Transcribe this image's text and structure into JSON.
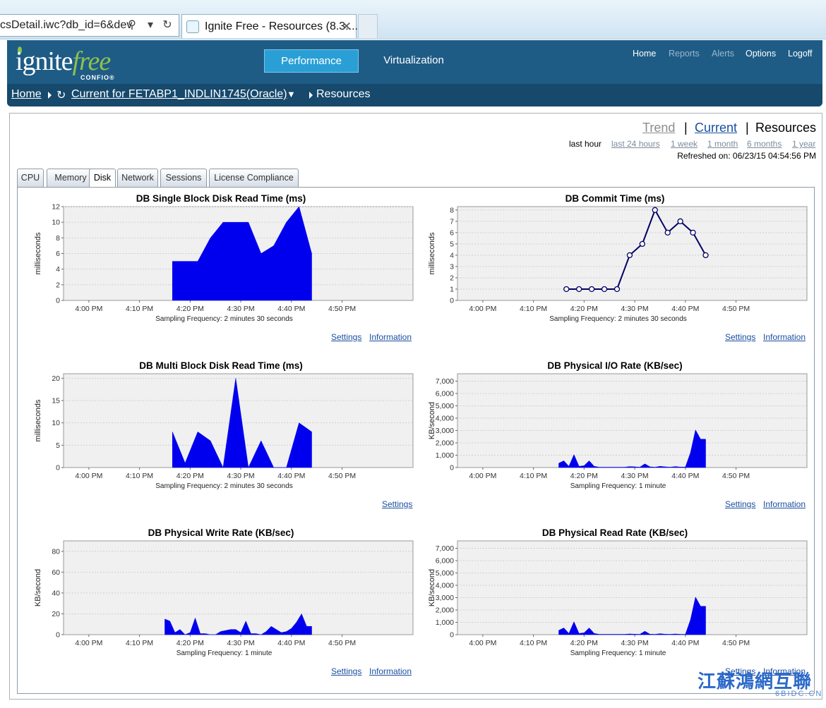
{
  "browser": {
    "address": "csDetail.iwc?db_id=6&dev",
    "tab_title": "Ignite Free - Resources (8.3....",
    "tab_close": "✕"
  },
  "header": {
    "logo_main": "ignite",
    "logo_accent": "free",
    "logo_sub": "CONFIO®",
    "nav_performance": "Performance",
    "nav_virtualization": "Virtualization",
    "links": [
      {
        "label": "Home",
        "enabled": true
      },
      {
        "label": "Reports",
        "enabled": false
      },
      {
        "label": "Alerts",
        "enabled": false
      },
      {
        "label": "Options",
        "enabled": true
      },
      {
        "label": "Logoff",
        "enabled": true
      }
    ]
  },
  "breadcrumb": {
    "home": "Home",
    "current": "Current for FETABP1_INDLIN1745(Oracle)",
    "dropdown_glyph": "▼",
    "refresh_glyph": "↻",
    "page": "Resources"
  },
  "view": {
    "trend": "Trend",
    "current": "Current",
    "resources": "Resources",
    "sep": "|",
    "ranges": [
      "last hour",
      "last 24 hours",
      "1 week",
      "1 month",
      "6 months",
      "1 year"
    ],
    "selected_range": "last hour",
    "refreshed": "Refreshed on: 06/23/15 04:54:56 PM"
  },
  "tabs": [
    "CPU",
    "Memory",
    "Disk",
    "Network",
    "Sessions",
    "License Compliance"
  ],
  "active_tab": "Disk",
  "links": {
    "settings": "Settings",
    "information": "Information"
  },
  "watermark": {
    "text": "江蘇鴻網互聯",
    "sub": "6BIDC.CN"
  },
  "colors": {
    "series_fill": "#0000ee",
    "line_series": "#000066",
    "plot_bg": "#f0f0f0",
    "header": "#1e5c86",
    "accent": "#2a9fd6"
  },
  "chart_data": [
    {
      "type": "area",
      "title": "DB Single Block Disk Read Time (ms)",
      "ylabel": "milliseconds",
      "xlabel": "Sampling Frequency: 2 minutes 30 seconds",
      "x_ticks": [
        "4:00 PM",
        "4:10 PM",
        "4:20 PM",
        "4:30 PM",
        "4:40 PM",
        "4:50 PM"
      ],
      "x_range_minutes": [
        -5,
        64
      ],
      "ylim": [
        0,
        12
      ],
      "y_ticks": [
        0,
        2,
        4,
        6,
        8,
        10,
        12
      ],
      "x_minutes": [
        16.5,
        19,
        21.5,
        24,
        26.5,
        29,
        31.5,
        34,
        36.5,
        39,
        41.5,
        44
      ],
      "values": [
        5,
        5,
        5,
        8,
        10,
        10,
        10,
        6,
        7,
        10,
        12,
        6
      ],
      "links": [
        "settings",
        "information"
      ]
    },
    {
      "type": "line",
      "title": "DB Commit Time (ms)",
      "ylabel": "milliseconds",
      "xlabel": "Sampling Frequency: 2 minutes 30 seconds",
      "x_ticks": [
        "4:00 PM",
        "4:10 PM",
        "4:20 PM",
        "4:30 PM",
        "4:40 PM",
        "4:50 PM"
      ],
      "x_range_minutes": [
        -5,
        64
      ],
      "ylim": [
        0,
        8.3
      ],
      "y_ticks": [
        0,
        1,
        2,
        3,
        4,
        5,
        6,
        7,
        8
      ],
      "x_minutes": [
        16.5,
        19,
        21.5,
        24,
        26.5,
        29,
        31.5,
        34,
        36.5,
        39,
        41.5,
        44
      ],
      "values": [
        1,
        1,
        1,
        1,
        1,
        4,
        5,
        8,
        6,
        7,
        6,
        4
      ],
      "links": [
        "settings",
        "information"
      ]
    },
    {
      "type": "area",
      "title": "DB Multi Block Disk Read Time (ms)",
      "ylabel": "milliseconds",
      "xlabel": "Sampling Frequency: 2 minutes 30 seconds",
      "x_ticks": [
        "4:00 PM",
        "4:10 PM",
        "4:20 PM",
        "4:30 PM",
        "4:40 PM",
        "4:50 PM"
      ],
      "x_range_minutes": [
        -5,
        64
      ],
      "ylim": [
        0,
        21
      ],
      "y_ticks": [
        0,
        5,
        10,
        15,
        20
      ],
      "x_minutes": [
        16.5,
        19,
        21.5,
        24,
        26.5,
        29,
        31.5,
        34,
        36.5,
        39,
        41.5,
        44
      ],
      "values": [
        8,
        1,
        8,
        6,
        0,
        20,
        0,
        6,
        0,
        0,
        10,
        8
      ],
      "links": [
        "settings"
      ]
    },
    {
      "type": "area",
      "title": "DB Physical I/O Rate (KB/sec)",
      "ylabel": "KB/second",
      "xlabel": "Sampling Frequency: 1 minute",
      "x_ticks": [
        "4:00 PM",
        "4:10 PM",
        "4:20 PM",
        "4:30 PM",
        "4:40 PM",
        "4:50 PM"
      ],
      "x_range_minutes": [
        -5,
        64
      ],
      "ylim": [
        0,
        7600
      ],
      "y_ticks": [
        0,
        1000,
        2000,
        3000,
        4000,
        5000,
        6000,
        7000
      ],
      "y_tick_labels": [
        "0",
        "1,000",
        "2,000",
        "3,000",
        "4,000",
        "5,000",
        "6,000",
        "7,000"
      ],
      "x_minutes": [
        15,
        16,
        17,
        18,
        19,
        20,
        21,
        22,
        23,
        24,
        25,
        26,
        27,
        28,
        29,
        30,
        31,
        32,
        33,
        34,
        35,
        36,
        37,
        38,
        39,
        40,
        41,
        42,
        43,
        44
      ],
      "values": [
        350,
        550,
        100,
        1050,
        100,
        150,
        550,
        100,
        30,
        30,
        30,
        30,
        30,
        30,
        80,
        60,
        30,
        300,
        60,
        30,
        100,
        60,
        30,
        80,
        40,
        40,
        1200,
        3050,
        2300,
        2300
      ],
      "links": [
        "settings",
        "information"
      ]
    },
    {
      "type": "area",
      "title": "DB Physical Write Rate (KB/sec)",
      "ylabel": "KB/second",
      "xlabel": "Sampling Frequency: 1 minute",
      "x_ticks": [
        "4:00 PM",
        "4:10 PM",
        "4:20 PM",
        "4:30 PM",
        "4:40 PM",
        "4:50 PM"
      ],
      "x_range_minutes": [
        -5,
        64
      ],
      "ylim": [
        0,
        90
      ],
      "y_ticks": [
        0,
        20,
        40,
        60,
        80
      ],
      "x_minutes": [
        15,
        16,
        17,
        18,
        19,
        20,
        21,
        22,
        23,
        24,
        25,
        26,
        27,
        28,
        29,
        30,
        31,
        32,
        33,
        34,
        35,
        36,
        37,
        38,
        39,
        40,
        41,
        42,
        43,
        44
      ],
      "values": [
        15,
        13,
        2,
        5,
        0,
        2,
        16,
        1,
        1,
        0,
        0,
        3,
        4,
        5,
        5,
        2,
        13,
        1,
        1,
        0,
        3,
        8,
        5,
        2,
        3,
        6,
        12,
        20,
        8,
        8
      ],
      "links": [
        "settings",
        "information"
      ]
    },
    {
      "type": "area",
      "title": "DB Physical Read Rate (KB/sec)",
      "ylabel": "KB/second",
      "xlabel": "Sampling Frequency: 1 minute",
      "x_ticks": [
        "4:00 PM",
        "4:10 PM",
        "4:20 PM",
        "4:30 PM",
        "4:40 PM",
        "4:50 PM"
      ],
      "x_range_minutes": [
        -5,
        64
      ],
      "ylim": [
        0,
        7600
      ],
      "y_ticks": [
        0,
        1000,
        2000,
        3000,
        4000,
        5000,
        6000,
        7000
      ],
      "y_tick_labels": [
        "0",
        "1,000",
        "2,000",
        "3,000",
        "4,000",
        "5,000",
        "6,000",
        "7,000"
      ],
      "x_minutes": [
        15,
        16,
        17,
        18,
        19,
        20,
        21,
        22,
        23,
        24,
        25,
        26,
        27,
        28,
        29,
        30,
        31,
        32,
        33,
        34,
        35,
        36,
        37,
        38,
        39,
        40,
        41,
        42,
        43,
        44
      ],
      "values": [
        350,
        550,
        100,
        1050,
        100,
        150,
        550,
        100,
        30,
        30,
        30,
        30,
        30,
        30,
        60,
        40,
        30,
        280,
        40,
        30,
        80,
        40,
        30,
        60,
        30,
        30,
        1200,
        3050,
        2300,
        2300
      ],
      "links": [
        "settings",
        "information"
      ]
    }
  ]
}
